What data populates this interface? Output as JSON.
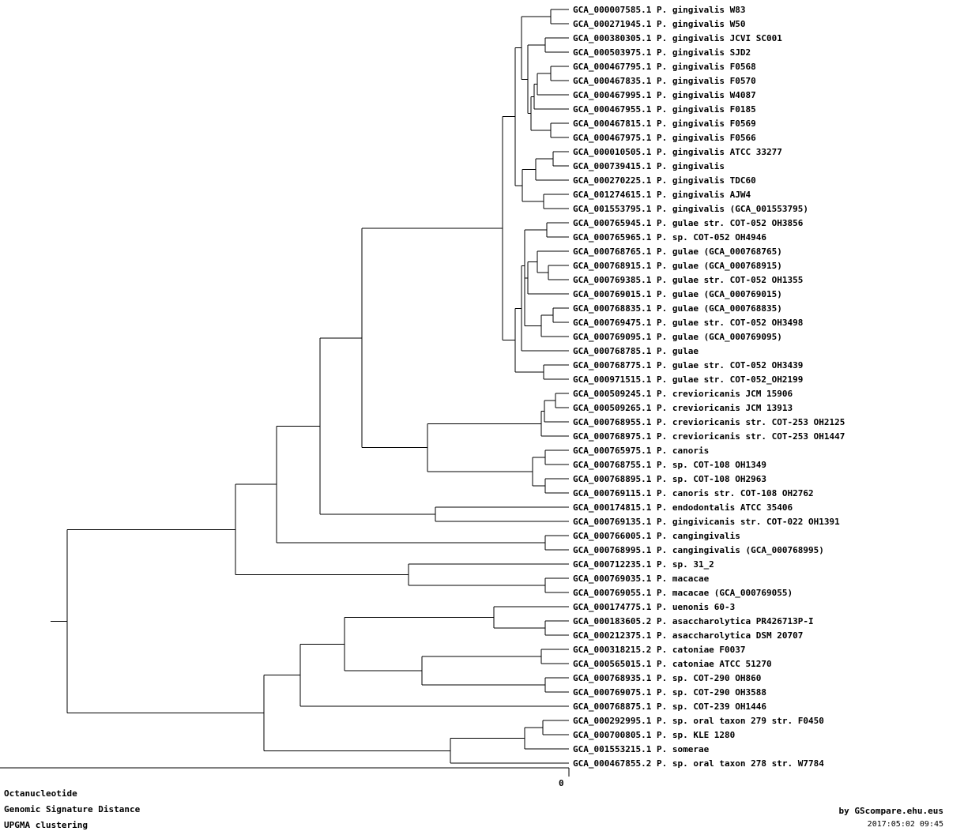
{
  "leaves": [
    "GCA_000007585.1 P. gingivalis W83",
    "GCA_000271945.1 P. gingivalis W50",
    "GCA_000380305.1 P. gingivalis JCVI SC001",
    "GCA_000503975.1 P. gingivalis SJD2",
    "GCA_000467795.1 P. gingivalis F0568",
    "GCA_000467835.1 P. gingivalis F0570",
    "GCA_000467995.1 P. gingivalis W4087",
    "GCA_000467955.1 P. gingivalis F0185",
    "GCA_000467815.1 P. gingivalis F0569",
    "GCA_000467975.1 P. gingivalis F0566",
    "GCA_000010505.1 P. gingivalis ATCC 33277",
    "GCA_000739415.1 P. gingivalis",
    "GCA_000270225.1 P. gingivalis TDC60",
    "GCA_001274615.1 P. gingivalis AJW4",
    "GCA_001553795.1 P. gingivalis (GCA_001553795)",
    "GCA_000765945.1 P. gulae str. COT-052 OH3856",
    "GCA_000765965.1 P. sp. COT-052 OH4946",
    "GCA_000768765.1 P. gulae (GCA_000768765)",
    "GCA_000768915.1 P. gulae (GCA_000768915)",
    "GCA_000769385.1 P. gulae str. COT-052 OH1355",
    "GCA_000769015.1 P. gulae (GCA_000769015)",
    "GCA_000768835.1 P. gulae (GCA_000768835)",
    "GCA_000769475.1 P. gulae str. COT-052 OH3498",
    "GCA_000769095.1 P. gulae (GCA_000769095)",
    "GCA_000768785.1 P. gulae",
    "GCA_000768775.1 P. gulae str. COT-052 OH3439",
    "GCA_000971515.1 P. gulae str. COT-052_OH2199",
    "GCA_000509245.1 P. crevioricanis JCM 15906",
    "GCA_000509265.1 P. crevioricanis JCM 13913",
    "GCA_000768955.1 P. crevioricanis str. COT-253 OH2125",
    "GCA_000768975.1 P. crevioricanis str. COT-253 OH1447",
    "GCA_000765975.1 P. canoris",
    "GCA_000768755.1 P. sp. COT-108 OH1349",
    "GCA_000768895.1 P. sp. COT-108 OH2963",
    "GCA_000769115.1 P. canoris str. COT-108 OH2762",
    "GCA_000174815.1 P. endodontalis ATCC 35406",
    "GCA_000769135.1 P. gingivicanis str. COT-022 OH1391",
    "GCA_000766005.1 P. cangingivalis",
    "GCA_000768995.1 P. cangingivalis (GCA_000768995)",
    "GCA_000712235.1 P. sp. 31_2",
    "GCA_000769035.1 P. macacae",
    "GCA_000769055.1 P. macacae (GCA_000769055)",
    "GCA_000174775.1 P. uenonis 60-3",
    "GCA_000183605.2 P. asaccharolytica PR426713P-I",
    "GCA_000212375.1 P. asaccharolytica DSM 20707",
    "GCA_000318215.2 P. catoniae F0037",
    "GCA_000565015.1 P. catoniae ATCC 51270",
    "GCA_000768935.1 P. sp. COT-290 OH860",
    "GCA_000769075.1 P. sp. COT-290 OH3588",
    "GCA_000768875.1 P. sp. COT-239 OH1446",
    "GCA_000292995.1 P. sp. oral taxon 279 str. F0450",
    "GCA_000700805.1 P. sp. KLE 1280",
    "GCA_001553215.1 P. somerae",
    "GCA_000467855.2 P. sp. oral taxon 278 str. W7784"
  ],
  "axis": {
    "zero_label": "0"
  },
  "footer": {
    "line1": "Octanucleotide",
    "line2": "Genomic Signature Distance",
    "line3": "UPGMA clustering",
    "credit": "by GScompare.ehu.eus",
    "timestamp": "2017:05:02 09:45"
  }
}
